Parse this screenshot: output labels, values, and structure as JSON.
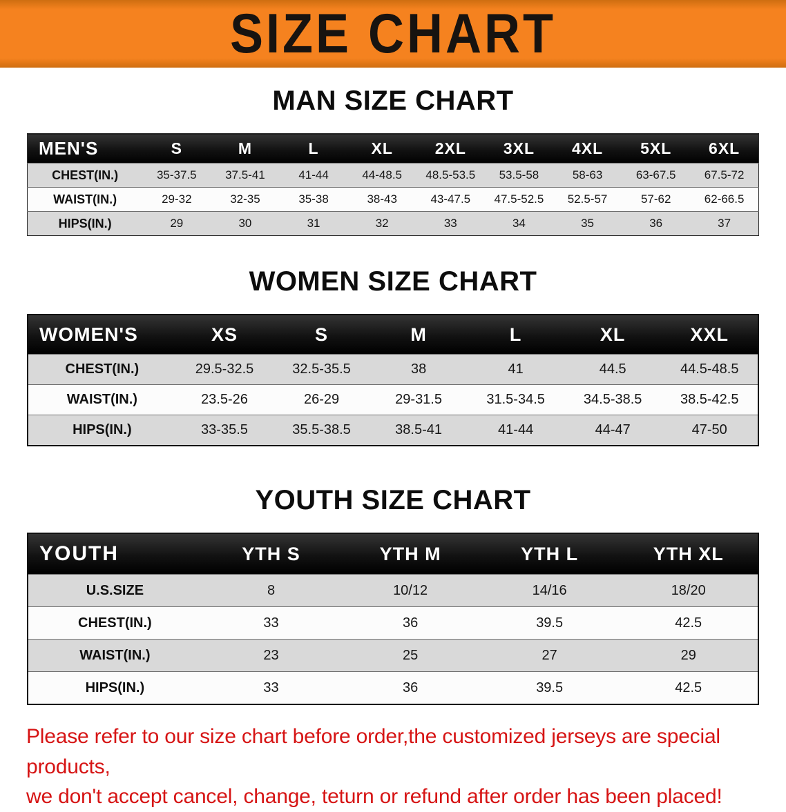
{
  "banner": {
    "title": "SIZE CHART"
  },
  "men": {
    "heading": "MAN SIZE CHART",
    "table": {
      "header": [
        "MEN'S",
        "S",
        "M",
        "L",
        "XL",
        "2XL",
        "3XL",
        "4XL",
        "5XL",
        "6XL"
      ],
      "rows": [
        [
          "CHEST(IN.)",
          "35-37.5",
          "37.5-41",
          "41-44",
          "44-48.5",
          "48.5-53.5",
          "53.5-58",
          "58-63",
          "63-67.5",
          "67.5-72"
        ],
        [
          "WAIST(IN.)",
          "29-32",
          "32-35",
          "35-38",
          "38-43",
          "43-47.5",
          "47.5-52.5",
          "52.5-57",
          "57-62",
          "62-66.5"
        ],
        [
          "HIPS(IN.)",
          "29",
          "30",
          "31",
          "32",
          "33",
          "34",
          "35",
          "36",
          "37"
        ]
      ]
    }
  },
  "women": {
    "heading": "WOMEN SIZE CHART",
    "table": {
      "header": [
        "WOMEN'S",
        "XS",
        "S",
        "M",
        "L",
        "XL",
        "XXL"
      ],
      "rows": [
        [
          "CHEST(IN.)",
          "29.5-32.5",
          "32.5-35.5",
          "38",
          "41",
          "44.5",
          "44.5-48.5"
        ],
        [
          "WAIST(IN.)",
          "23.5-26",
          "26-29",
          "29-31.5",
          "31.5-34.5",
          "34.5-38.5",
          "38.5-42.5"
        ],
        [
          "HIPS(IN.)",
          "33-35.5",
          "35.5-38.5",
          "38.5-41",
          "41-44",
          "44-47",
          "47-50"
        ]
      ]
    }
  },
  "youth": {
    "heading": "YOUTH SIZE CHART",
    "table": {
      "header": [
        "YOUTH",
        "YTH S",
        "YTH M",
        "YTH L",
        "YTH XL"
      ],
      "rows": [
        [
          "U.S.SIZE",
          "8",
          "10/12",
          "14/16",
          "18/20"
        ],
        [
          "CHEST(IN.)",
          "33",
          "36",
          "39.5",
          "42.5"
        ],
        [
          "WAIST(IN.)",
          "23",
          "25",
          "27",
          "29"
        ],
        [
          "HIPS(IN.)",
          "33",
          "36",
          "39.5",
          "42.5"
        ]
      ]
    }
  },
  "notice": {
    "line1": "Please refer to our size chart before order,the customized jerseys are special products,",
    "line2": "we don't accept cancel, change, teturn or refund after order has been placed!"
  },
  "colors": {
    "banner_bg": "#F5821F",
    "banner_edge": "#CF6E10",
    "table_header_bg": "#121212",
    "row_shaded_bg": "#D9D9D9",
    "notice_text": "#D61414"
  }
}
